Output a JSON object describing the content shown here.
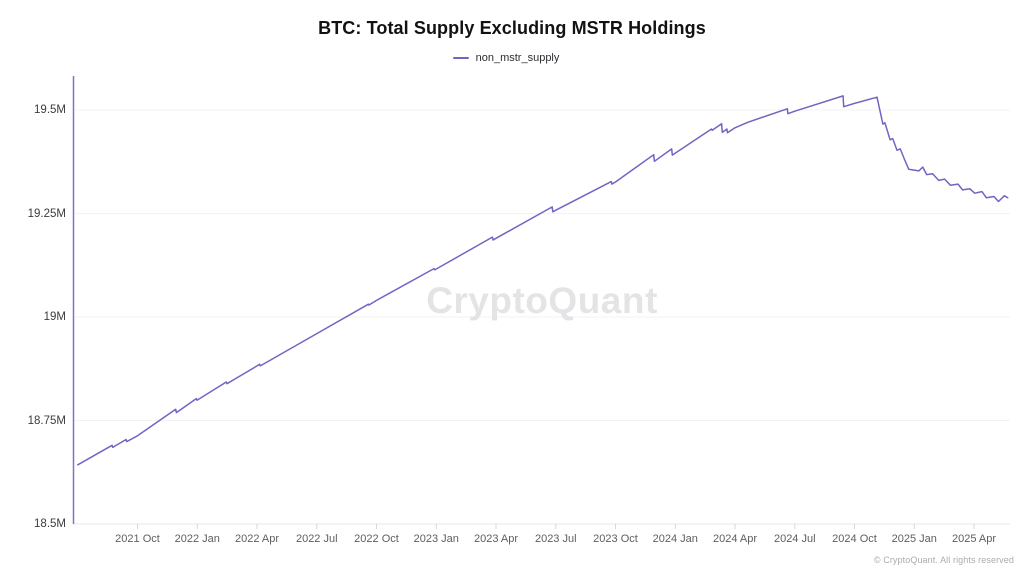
{
  "title": "BTC: Total Supply Excluding MSTR Holdings",
  "legend": {
    "label": "non_mstr_supply"
  },
  "watermark": "CryptoQuant",
  "footer": {
    "copyright": "© CryptoQuant. All rights reserved"
  },
  "colors": {
    "line": "#6f66c2",
    "y_axis": "#7d74c9",
    "grid": "#f3f3f6",
    "baseline": "#e8e8ec",
    "tick": "#d7d7dc"
  },
  "chart_data": {
    "type": "line",
    "title": "BTC: Total Supply Excluding MSTR Holdings",
    "xlabel": "",
    "ylabel": "",
    "legend_position": "top-center",
    "grid": "horizontal-faint",
    "ylim": [
      18.5,
      19.6
    ],
    "y_ticks": [
      "19.5M",
      "19.25M",
      "19M",
      "18.75M",
      "18.5M"
    ],
    "y_tick_values": [
      19.5,
      19.25,
      19.0,
      18.75,
      18.5
    ],
    "x_ticks": [
      "2021 Oct",
      "2022 Jan",
      "2022 Apr",
      "2022 Jul",
      "2022 Oct",
      "2023 Jan",
      "2023 Apr",
      "2023 Jul",
      "2023 Oct",
      "2024 Jan",
      "2024 Apr",
      "2024 Jul",
      "2024 Oct",
      "2025 Jan",
      "2025 Apr"
    ],
    "unit": "millions of BTC",
    "series": [
      {
        "name": "non_mstr_supply",
        "points": [
          [
            "2021-07-01",
            18.643
          ],
          [
            "2021-08-23",
            18.69
          ],
          [
            "2021-08-24",
            18.685
          ],
          [
            "2021-09-14",
            18.704
          ],
          [
            "2021-09-15",
            18.699
          ],
          [
            "2021-10-01",
            18.713
          ],
          [
            "2021-11-29",
            18.777
          ],
          [
            "2021-11-30",
            18.769
          ],
          [
            "2021-12-30",
            18.803
          ],
          [
            "2021-12-31",
            18.799
          ],
          [
            "2022-02-15",
            18.843
          ],
          [
            "2022-02-16",
            18.839
          ],
          [
            "2022-04-01",
            18.882
          ],
          [
            "2022-04-05",
            18.886
          ],
          [
            "2022-04-06",
            18.882
          ],
          [
            "2022-07-01",
            18.96
          ],
          [
            "2022-09-19",
            19.031
          ],
          [
            "2022-09-20",
            19.029
          ],
          [
            "2022-10-01",
            19.04
          ],
          [
            "2022-12-28",
            19.117
          ],
          [
            "2022-12-29",
            19.114
          ],
          [
            "2023-01-01",
            19.116
          ],
          [
            "2023-03-26",
            19.193
          ],
          [
            "2023-03-27",
            19.186
          ],
          [
            "2023-04-01",
            19.19
          ],
          [
            "2023-06-26",
            19.266
          ],
          [
            "2023-06-27",
            19.254
          ],
          [
            "2023-07-01",
            19.258
          ],
          [
            "2023-09-25",
            19.327
          ],
          [
            "2023-09-26",
            19.321
          ],
          [
            "2023-10-01",
            19.326
          ],
          [
            "2023-11-29",
            19.392
          ],
          [
            "2023-11-30",
            19.376
          ],
          [
            "2023-12-26",
            19.406
          ],
          [
            "2023-12-27",
            19.391
          ],
          [
            "2024-01-01",
            19.396
          ],
          [
            "2024-02-26",
            19.454
          ],
          [
            "2024-02-27",
            19.451
          ],
          [
            "2024-03-11",
            19.467
          ],
          [
            "2024-03-12",
            19.446
          ],
          [
            "2024-03-19",
            19.454
          ],
          [
            "2024-03-20",
            19.445
          ],
          [
            "2024-04-01",
            19.457
          ],
          [
            "2024-04-20",
            19.47
          ],
          [
            "2024-06-20",
            19.503
          ],
          [
            "2024-06-21",
            19.491
          ],
          [
            "2024-07-01",
            19.497
          ],
          [
            "2024-09-14",
            19.534
          ],
          [
            "2024-09-15",
            19.508
          ],
          [
            "2024-10-01",
            19.516
          ],
          [
            "2024-11-05",
            19.531
          ],
          [
            "2024-11-14",
            19.466
          ],
          [
            "2024-11-17",
            19.469
          ],
          [
            "2024-11-25",
            19.428
          ],
          [
            "2024-11-29",
            19.431
          ],
          [
            "2024-12-05",
            19.403
          ],
          [
            "2024-12-10",
            19.406
          ],
          [
            "2024-12-17",
            19.379
          ],
          [
            "2024-12-23",
            19.357
          ],
          [
            "2025-01-08",
            19.353
          ],
          [
            "2025-01-14",
            19.362
          ],
          [
            "2025-01-20",
            19.344
          ],
          [
            "2025-01-29",
            19.346
          ],
          [
            "2025-02-08",
            19.33
          ],
          [
            "2025-02-17",
            19.333
          ],
          [
            "2025-02-26",
            19.318
          ],
          [
            "2025-03-07",
            19.321
          ],
          [
            "2025-03-14",
            19.307
          ],
          [
            "2025-03-25",
            19.31
          ],
          [
            "2025-04-02",
            19.299
          ],
          [
            "2025-04-13",
            19.303
          ],
          [
            "2025-04-20",
            19.288
          ],
          [
            "2025-05-01",
            19.291
          ],
          [
            "2025-05-08",
            19.279
          ],
          [
            "2025-05-17",
            19.293
          ],
          [
            "2025-05-22",
            19.288
          ]
        ]
      }
    ]
  }
}
